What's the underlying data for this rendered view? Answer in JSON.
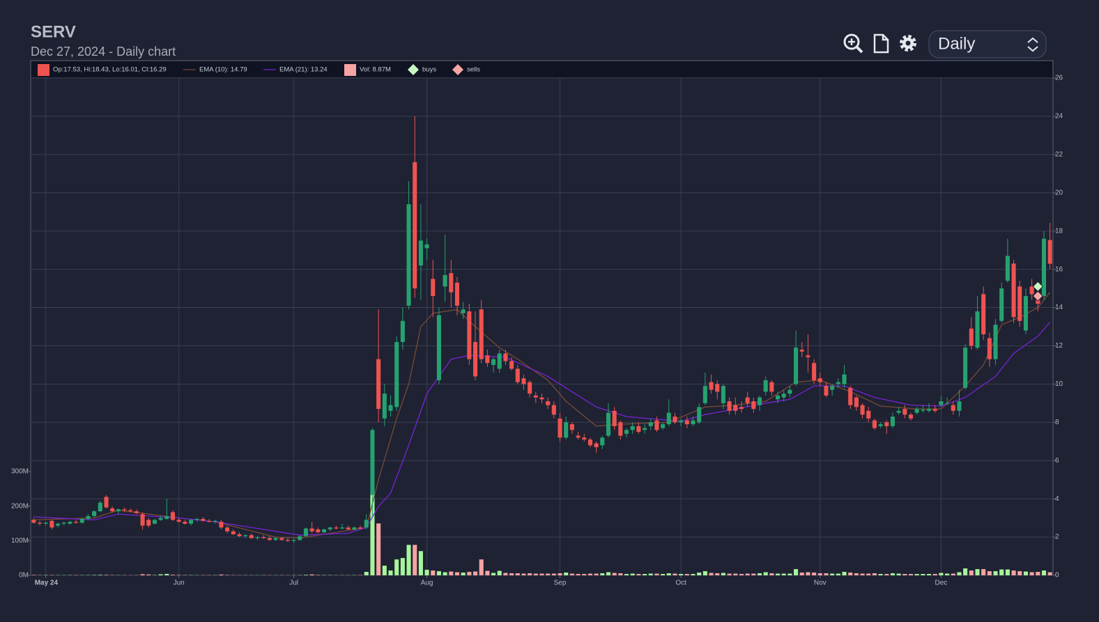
{
  "chart_data": {
    "type": "candlestick",
    "title": "SERV",
    "subtitle": "Dec 27, 2024 - Daily chart",
    "interval": "Daily",
    "candle_label": "Op:17.53, Hi:18.43, Lo:16.01, Cl:16.29",
    "up_color": "#26a270",
    "down_color": "#ef5350",
    "grid": true,
    "xlim": [
      -0.5,
      168.5
    ],
    "xticks": [
      {
        "value": 2,
        "label": "May 24"
      },
      {
        "value": 24,
        "label": "Jun"
      },
      {
        "value": 43,
        "label": "Jul"
      },
      {
        "value": 65,
        "label": "Aug"
      },
      {
        "value": 87,
        "label": "Sep"
      },
      {
        "value": 107,
        "label": "Oct"
      },
      {
        "value": 130,
        "label": "Nov"
      },
      {
        "value": 150,
        "label": "Dec"
      }
    ],
    "ylim": [
      0,
      26
    ],
    "yticks": [
      0,
      2,
      4,
      6,
      8,
      10,
      12,
      14,
      16,
      18,
      20,
      22,
      24,
      26
    ],
    "y2lim": [
      0,
      1437
    ],
    "y2ticks": [
      {
        "value": 0,
        "label": "0M"
      },
      {
        "value": 100,
        "label": "100M"
      },
      {
        "value": 200,
        "label": "200M"
      },
      {
        "value": 300,
        "label": "300M"
      }
    ],
    "candles": [
      [
        2.9,
        3.0,
        2.7,
        2.75
      ],
      [
        2.75,
        2.85,
        2.6,
        2.7
      ],
      [
        2.7,
        2.8,
        2.6,
        2.75
      ],
      [
        2.85,
        2.9,
        2.4,
        2.5
      ],
      [
        2.6,
        2.75,
        2.5,
        2.7
      ],
      [
        2.7,
        2.8,
        2.6,
        2.75
      ],
      [
        2.7,
        2.85,
        2.65,
        2.8
      ],
      [
        2.8,
        2.9,
        2.7,
        2.75
      ],
      [
        2.75,
        3.0,
        2.7,
        2.95
      ],
      [
        2.95,
        3.2,
        2.9,
        3.1
      ],
      [
        3.1,
        3.4,
        3.0,
        3.35
      ],
      [
        3.35,
        3.9,
        3.3,
        3.8
      ],
      [
        4.1,
        4.2,
        3.5,
        3.55
      ],
      [
        3.5,
        3.6,
        3.3,
        3.35
      ],
      [
        3.35,
        3.5,
        3.2,
        3.45
      ],
      [
        3.45,
        3.55,
        3.3,
        3.4
      ],
      [
        3.4,
        3.5,
        3.3,
        3.35
      ],
      [
        3.35,
        3.45,
        3.2,
        3.25
      ],
      [
        3.2,
        3.3,
        2.4,
        2.6
      ],
      [
        2.9,
        3.0,
        2.5,
        2.6
      ],
      [
        2.7,
        2.95,
        2.65,
        2.9
      ],
      [
        2.9,
        3.1,
        2.85,
        3.0
      ],
      [
        2.95,
        4.0,
        2.9,
        3.1
      ],
      [
        3.3,
        3.4,
        2.85,
        2.9
      ],
      [
        2.9,
        3.0,
        2.75,
        2.8
      ],
      [
        2.8,
        2.9,
        2.65,
        2.7
      ],
      [
        2.7,
        2.95,
        2.6,
        2.9
      ],
      [
        2.9,
        3.0,
        2.8,
        2.95
      ],
      [
        2.95,
        3.05,
        2.8,
        2.85
      ],
      [
        2.85,
        2.95,
        2.75,
        2.8
      ],
      [
        2.8,
        2.9,
        2.7,
        2.85
      ],
      [
        2.8,
        2.9,
        2.4,
        2.5
      ],
      [
        2.5,
        2.6,
        2.2,
        2.3
      ],
      [
        2.3,
        2.4,
        2.1,
        2.15
      ],
      [
        2.15,
        2.25,
        2.0,
        2.05
      ],
      [
        2.05,
        2.15,
        1.95,
        2.1
      ],
      [
        2.1,
        2.2,
        1.9,
        1.95
      ],
      [
        1.95,
        2.05,
        1.85,
        2.0
      ],
      [
        2.0,
        2.1,
        1.9,
        1.95
      ],
      [
        1.95,
        2.05,
        1.8,
        1.85
      ],
      [
        1.85,
        2.0,
        1.8,
        1.95
      ],
      [
        1.95,
        2.0,
        1.8,
        1.85
      ],
      [
        1.85,
        1.95,
        1.75,
        1.8
      ],
      [
        1.8,
        1.9,
        1.7,
        1.85
      ],
      [
        1.85,
        2.1,
        1.8,
        2.05
      ],
      [
        2.05,
        2.5,
        2.0,
        2.45
      ],
      [
        2.45,
        2.8,
        2.2,
        2.3
      ],
      [
        2.4,
        2.5,
        2.2,
        2.25
      ],
      [
        2.25,
        2.45,
        2.2,
        2.4
      ],
      [
        2.4,
        2.55,
        2.3,
        2.5
      ],
      [
        2.5,
        2.6,
        2.4,
        2.45
      ],
      [
        2.45,
        2.7,
        2.4,
        2.5
      ],
      [
        2.5,
        2.6,
        2.35,
        2.4
      ],
      [
        2.4,
        2.55,
        2.35,
        2.5
      ],
      [
        2.5,
        2.6,
        2.4,
        2.45
      ],
      [
        2.5,
        3.2,
        2.4,
        2.9
      ],
      [
        4.2,
        7.7,
        3.1,
        7.6
      ],
      [
        11.3,
        13.9,
        8.0,
        8.7
      ],
      [
        8.2,
        10.0,
        7.8,
        9.5
      ],
      [
        8.6,
        9.4,
        8.3,
        8.9
      ],
      [
        8.8,
        12.5,
        8.6,
        12.2
      ],
      [
        12.2,
        14.0,
        11.8,
        13.3
      ],
      [
        14.1,
        20.6,
        13.9,
        19.4
      ],
      [
        21.6,
        24.0,
        14.5,
        15.0
      ],
      [
        16.2,
        19.4,
        14.4,
        17.5
      ],
      [
        17.1,
        17.6,
        16.5,
        17.3
      ],
      [
        15.5,
        16.5,
        13.5,
        14.6
      ],
      [
        10.2,
        14.0,
        10.0,
        13.6
      ],
      [
        15.1,
        17.8,
        14.3,
        15.7
      ],
      [
        15.8,
        16.5,
        14.0,
        14.8
      ],
      [
        15.3,
        15.6,
        13.6,
        14.1
      ],
      [
        13.7,
        14.3,
        13.4,
        13.9
      ],
      [
        13.8,
        14.2,
        11.0,
        11.3
      ],
      [
        12.2,
        13.8,
        10.2,
        10.4
      ],
      [
        13.9,
        14.4,
        11.1,
        11.3
      ],
      [
        11.5,
        11.8,
        10.9,
        11.1
      ],
      [
        11.0,
        11.4,
        10.6,
        11.3
      ],
      [
        10.8,
        11.8,
        10.6,
        11.6
      ],
      [
        11.6,
        11.8,
        11.0,
        11.2
      ],
      [
        11.2,
        11.4,
        10.7,
        10.8
      ],
      [
        10.8,
        11.0,
        10.0,
        10.1
      ],
      [
        10.3,
        10.5,
        9.7,
        10.0
      ],
      [
        10.1,
        10.2,
        9.3,
        9.5
      ],
      [
        9.4,
        9.6,
        9.0,
        9.3
      ],
      [
        9.3,
        9.5,
        9.0,
        9.2
      ],
      [
        9.1,
        9.3,
        8.7,
        8.9
      ],
      [
        8.9,
        9.1,
        8.2,
        8.4
      ],
      [
        8.2,
        8.5,
        7.0,
        7.2
      ],
      [
        7.2,
        8.3,
        7.1,
        8.0
      ],
      [
        7.9,
        8.0,
        7.4,
        7.6
      ],
      [
        7.3,
        7.5,
        7.1,
        7.2
      ],
      [
        7.2,
        7.4,
        7.0,
        7.1
      ],
      [
        7.1,
        7.2,
        6.7,
        6.8
      ],
      [
        6.9,
        7.0,
        6.4,
        6.7
      ],
      [
        6.8,
        7.3,
        6.6,
        7.2
      ],
      [
        7.3,
        9.0,
        7.2,
        8.5
      ],
      [
        8.6,
        8.8,
        7.6,
        7.8
      ],
      [
        8.0,
        8.1,
        7.1,
        7.3
      ],
      [
        7.4,
        7.7,
        7.2,
        7.6
      ],
      [
        7.6,
        8.0,
        7.4,
        7.8
      ],
      [
        7.8,
        8.0,
        7.4,
        7.5
      ],
      [
        7.6,
        7.9,
        7.4,
        7.7
      ],
      [
        7.8,
        8.2,
        7.6,
        8.0
      ],
      [
        8.1,
        8.3,
        7.5,
        7.6
      ],
      [
        7.7,
        8.0,
        7.6,
        7.9
      ],
      [
        7.9,
        9.2,
        7.8,
        8.5
      ],
      [
        8.3,
        8.5,
        7.9,
        8.0
      ],
      [
        8.0,
        8.2,
        7.8,
        8.1
      ],
      [
        8.1,
        8.3,
        7.7,
        7.9
      ],
      [
        7.9,
        8.3,
        7.8,
        8.1
      ],
      [
        8.0,
        9.0,
        7.9,
        8.8
      ],
      [
        9.0,
        10.6,
        8.9,
        9.9
      ],
      [
        10.1,
        10.5,
        9.5,
        9.7
      ],
      [
        10.0,
        10.2,
        9.2,
        9.6
      ],
      [
        9.0,
        10.0,
        8.7,
        9.9
      ],
      [
        9.1,
        9.3,
        8.4,
        8.6
      ],
      [
        8.9,
        9.3,
        8.4,
        8.6
      ],
      [
        8.8,
        9.1,
        8.5,
        8.7
      ],
      [
        9.3,
        9.6,
        8.8,
        9.0
      ],
      [
        9.1,
        9.3,
        8.5,
        8.7
      ],
      [
        8.9,
        9.4,
        8.6,
        9.3
      ],
      [
        9.6,
        10.4,
        9.4,
        10.2
      ],
      [
        10.1,
        10.2,
        9.4,
        9.6
      ],
      [
        9.2,
        9.6,
        9.0,
        9.4
      ],
      [
        9.3,
        9.7,
        9.1,
        9.5
      ],
      [
        9.5,
        9.9,
        9.3,
        9.7
      ],
      [
        10.0,
        12.8,
        9.9,
        11.9
      ],
      [
        11.8,
        12.2,
        11.4,
        11.7
      ],
      [
        11.5,
        12.6,
        10.6,
        11.4
      ],
      [
        11.1,
        11.3,
        10.0,
        10.2
      ],
      [
        10.3,
        10.6,
        9.9,
        10.1
      ],
      [
        9.9,
        10.1,
        9.3,
        9.4
      ],
      [
        9.7,
        10.0,
        9.4,
        9.9
      ],
      [
        10.0,
        10.3,
        9.8,
        10.1
      ],
      [
        10.0,
        11.0,
        9.8,
        10.5
      ],
      [
        9.8,
        9.9,
        8.7,
        8.9
      ],
      [
        9.3,
        9.4,
        8.6,
        8.8
      ],
      [
        8.9,
        9.0,
        8.2,
        8.4
      ],
      [
        8.6,
        8.8,
        8.0,
        8.2
      ],
      [
        8.1,
        8.2,
        7.6,
        7.7
      ],
      [
        7.8,
        8.0,
        7.7,
        7.9
      ],
      [
        8.0,
        8.1,
        7.4,
        7.8
      ],
      [
        7.8,
        8.5,
        7.7,
        8.3
      ],
      [
        8.5,
        8.8,
        8.4,
        8.6
      ],
      [
        8.7,
        8.9,
        8.2,
        8.4
      ],
      [
        8.4,
        8.5,
        8.1,
        8.2
      ],
      [
        8.5,
        8.8,
        8.4,
        8.7
      ],
      [
        8.6,
        8.9,
        8.5,
        8.65
      ],
      [
        8.6,
        9.0,
        8.5,
        8.7
      ],
      [
        8.7,
        8.9,
        8.5,
        8.6
      ],
      [
        8.9,
        9.4,
        8.8,
        9.1
      ],
      [
        9.0,
        9.3,
        8.9,
        9.0
      ],
      [
        8.9,
        9.1,
        8.4,
        8.6
      ],
      [
        8.6,
        9.7,
        8.3,
        9.1
      ],
      [
        9.8,
        12.1,
        9.7,
        11.9
      ],
      [
        12.9,
        13.5,
        11.8,
        12.0
      ],
      [
        11.9,
        14.6,
        11.8,
        13.8
      ],
      [
        14.7,
        15.1,
        12.3,
        12.6
      ],
      [
        12.4,
        12.7,
        10.9,
        11.3
      ],
      [
        11.3,
        13.4,
        11.0,
        13.1
      ],
      [
        13.3,
        15.3,
        13.2,
        15.0
      ],
      [
        15.4,
        17.6,
        15.3,
        16.7
      ],
      [
        16.3,
        16.5,
        13.2,
        13.5
      ],
      [
        15.1,
        15.4,
        13.0,
        13.3
      ],
      [
        12.8,
        15.0,
        12.6,
        14.6
      ],
      [
        15.1,
        15.5,
        14.4,
        14.7
      ],
      [
        14.7,
        15.0,
        13.8,
        14.2
      ],
      [
        14.6,
        18.0,
        14.4,
        17.6
      ],
      [
        17.53,
        18.43,
        16.01,
        16.29
      ]
    ],
    "volume": {
      "name": "Vol: 8.87M",
      "up_color": "#a6f59a",
      "down_color": "#f5a3a3",
      "values": [
        1.2,
        0.8,
        0.9,
        1.0,
        0.7,
        0.6,
        0.8,
        0.9,
        0.7,
        0.8,
        1.1,
        1.5,
        1.4,
        0.9,
        0.7,
        0.8,
        0.6,
        0.7,
        3.2,
        2.5,
        1.0,
        3.0,
        4.1,
        1.8,
        1.2,
        0.9,
        0.8,
        0.7,
        0.8,
        0.9,
        0.7,
        2.4,
        1.1,
        0.8,
        0.7,
        0.6,
        0.7,
        0.6,
        0.8,
        0.7,
        0.6,
        0.7,
        0.6,
        0.5,
        0.8,
        1.5,
        2.6,
        1.2,
        0.9,
        0.8,
        0.7,
        0.6,
        0.8,
        0.7,
        0.9,
        10,
        236,
        150,
        28,
        14,
        46,
        50,
        88,
        88,
        70,
        16,
        14,
        12,
        9,
        11,
        9,
        8,
        10,
        11,
        46,
        13,
        7,
        13,
        7,
        6,
        6,
        5,
        6,
        5,
        5,
        5,
        5,
        6,
        8,
        5,
        4,
        4,
        5,
        5,
        6,
        9,
        7,
        6,
        4,
        5,
        4,
        4,
        5,
        5,
        4,
        6,
        5,
        4,
        4,
        4,
        8,
        12,
        7,
        6,
        7,
        5,
        5,
        4,
        5,
        5,
        6,
        9,
        6,
        5,
        5,
        5,
        18,
        8,
        9,
        8,
        6,
        6,
        5,
        5,
        10,
        8,
        6,
        5,
        5,
        6,
        4,
        4,
        6,
        5,
        4,
        4,
        4,
        4,
        4,
        4,
        7,
        5,
        5,
        9,
        20,
        14,
        18,
        18,
        12,
        12,
        17,
        17,
        14,
        12,
        11,
        9,
        10,
        14,
        8.87
      ]
    },
    "series": [
      {
        "name": "EMA (10): 14.79",
        "color": "#7a4a32",
        "x": [
          0,
          10,
          14,
          24,
          30,
          40,
          44,
          52,
          55,
          57,
          60,
          62,
          64,
          66,
          70,
          73,
          77,
          80,
          85,
          88,
          93,
          97,
          105,
          111,
          116,
          121,
          126,
          130,
          135,
          140,
          146,
          150,
          154,
          157,
          160,
          163,
          166,
          168
        ],
        "values": [
          2.9,
          3.0,
          3.4,
          3.0,
          2.8,
          2.0,
          1.95,
          2.35,
          2.5,
          5.0,
          8.2,
          10.0,
          13.0,
          13.7,
          13.9,
          13.0,
          11.9,
          11.3,
          10.2,
          9.1,
          7.8,
          7.9,
          8.0,
          8.8,
          8.9,
          9.1,
          10.1,
          10.2,
          9.6,
          8.85,
          8.7,
          8.7,
          9.9,
          11.0,
          13.1,
          13.5,
          14.0,
          14.79
        ]
      },
      {
        "name": "EMA (21): 13.24",
        "color": "#7a22d6",
        "x": [
          0,
          10,
          14,
          24,
          30,
          40,
          44,
          52,
          55,
          57,
          59,
          62,
          65,
          69,
          72,
          78,
          85,
          93,
          98,
          107,
          111,
          116,
          121,
          125,
          129,
          134,
          139,
          145,
          150,
          154,
          159,
          162,
          166,
          168
        ],
        "values": [
          3.06,
          2.9,
          3.2,
          3.0,
          2.8,
          2.3,
          2.1,
          2.2,
          2.5,
          3.6,
          4.3,
          6.8,
          9.5,
          11.3,
          11.5,
          11.4,
          10.4,
          8.8,
          8.3,
          8.05,
          8.4,
          8.7,
          9.0,
          9.2,
          9.9,
          9.9,
          9.3,
          8.9,
          8.85,
          9.3,
          10.4,
          11.6,
          12.5,
          13.24
        ]
      }
    ],
    "markers": [
      {
        "name": "buys",
        "color": "#c9f7c4",
        "x": [
          166
        ],
        "values": [
          15.1
        ]
      },
      {
        "name": "sells",
        "color": "#f7a6a6",
        "x": [
          166
        ],
        "values": [
          14.6
        ]
      }
    ]
  }
}
